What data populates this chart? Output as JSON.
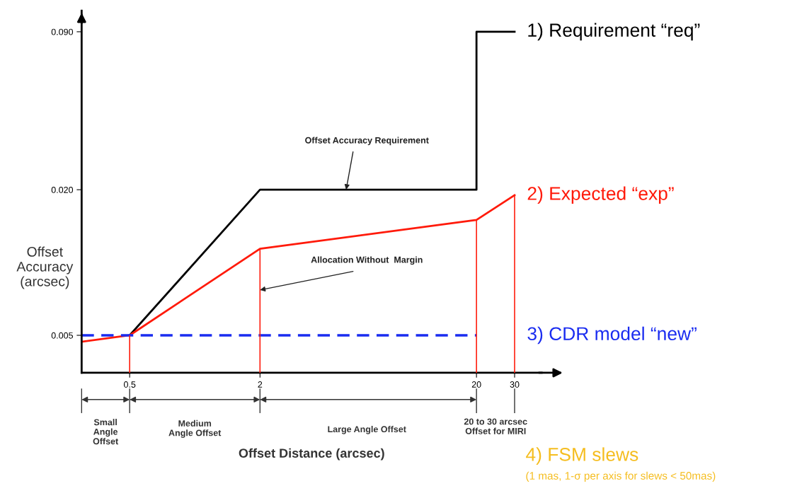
{
  "chart_data": {
    "type": "line",
    "xlabel": "Offset Distance (arcsec)",
    "ylabel": "Offset\nAccuracy\n(arcsec)",
    "log": "xy",
    "xlim": [
      0.3,
      40
    ],
    "xticks": [
      0.5,
      2,
      20,
      30
    ],
    "ylim": [
      0.0035,
      0.11
    ],
    "yticks": [
      0.005,
      {
        "value": 0.02,
        "label": "0.020"
      },
      {
        "value": 0.09,
        "label": "0.090"
      }
    ],
    "grid": false,
    "marker": "none",
    "series": [
      {
        "name": "1) Requirement “req”",
        "color": "#000000",
        "line_style": "solid",
        "x": [
          0.5,
          2,
          20,
          20,
          30
        ],
        "values": [
          0.005,
          0.02,
          0.02,
          0.09,
          0.09
        ]
      },
      {
        "name": "2) Expected “exp”",
        "color": "#ff1a0a",
        "line_style": "solid",
        "x": [
          0.3,
          0.5,
          2,
          20,
          30
        ],
        "values": [
          0.0047,
          0.005,
          0.0114,
          0.015,
          0.019
        ]
      },
      {
        "color": "#ff1a0a",
        "type": "bar",
        "x": [
          0.5,
          2,
          20,
          30
        ],
        "values": [
          0.005,
          0.0114,
          0.015,
          0.019
        ]
      },
      {
        "name": "3) CDR model “new”",
        "color": "#1a2cf0",
        "line_style": "dashed",
        "x": [
          0.3,
          20
        ],
        "values": [
          0.005,
          0.005
        ]
      }
    ],
    "annotations": [
      {
        "text": "Offset Accuracy Requirement",
        "x": 5,
        "y": 0.02
      },
      {
        "text": "Allocation Without  Margin",
        "x": 2,
        "y": 0.0077
      },
      "Small\nAngle\nOffset",
      "Medium\nAngle Offset",
      "Large Angle Offset",
      "20 to 30 arcsec\nOffset for MIRI",
      "4) FSM slews",
      "(1 mas, 1-σ per axis for slews < 50mas)"
    ]
  }
}
